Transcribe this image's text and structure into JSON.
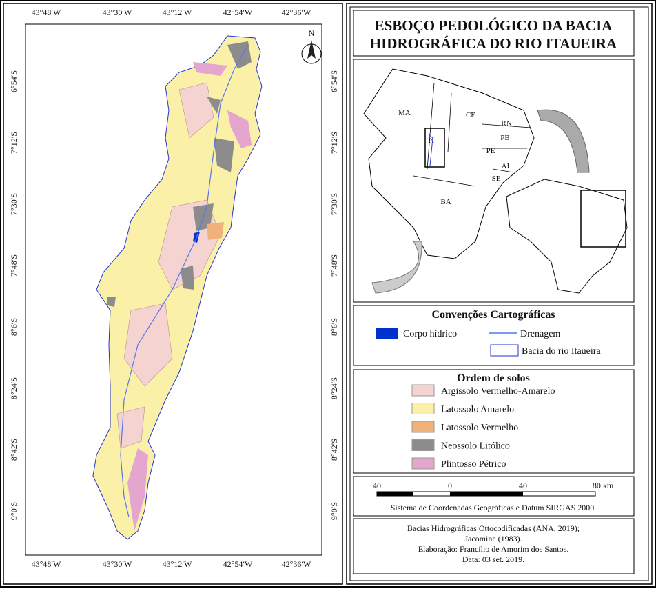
{
  "map": {
    "longitude_labels": [
      "43°48′W",
      "43°30′W",
      "43°12′W",
      "42°54′W",
      "42°36′W"
    ],
    "latitude_labels": [
      "6°54′S",
      "7°12′S",
      "7°30′S",
      "7°48′S",
      "8°6′S",
      "8°24′S",
      "8°42′S",
      "9°0′S"
    ],
    "north_arrow": "N"
  },
  "title": [
    "ESBOÇO PEDOLÓGICO DA BACIA",
    "HIDROGRÁFICA DO RIO ITAUEIRA"
  ],
  "inset": {
    "state_labels": [
      "MA",
      "CE",
      "RN",
      "PB",
      "PE",
      "AL",
      "SE",
      "BA",
      "PI"
    ]
  },
  "conventions": {
    "title": "Convenções Cartográficas",
    "items": [
      "Corpo hídrico",
      "Drenagem",
      "Bacia do rio Itaueira"
    ]
  },
  "soils": {
    "title": "Ordem de solos",
    "items": [
      {
        "label": "Argissolo Vermelho-Amarelo",
        "color": "#f5d3d0"
      },
      {
        "label": "Latossolo Amarelo",
        "color": "#fbf0a8"
      },
      {
        "label": "Latossolo Vermelho",
        "color": "#efb27a"
      },
      {
        "label": "Neossolo Litólico",
        "color": "#8c8c8c"
      },
      {
        "label": "Plintosso Pétrico",
        "color": "#e4a6cf"
      }
    ]
  },
  "scale": {
    "labels": [
      "40",
      "0",
      "40",
      "80 km"
    ],
    "note": "Sistema de Coordenadas Geográficas e Datum SIRGAS 2000."
  },
  "credits": [
    "Bacias Hidrográficas Ottocodificadas (ANA, 2019);",
    "Jacomine (1983).",
    "Elaboração: Francílio de Amorim dos Santos.",
    "Data: 03 set. 2019."
  ]
}
